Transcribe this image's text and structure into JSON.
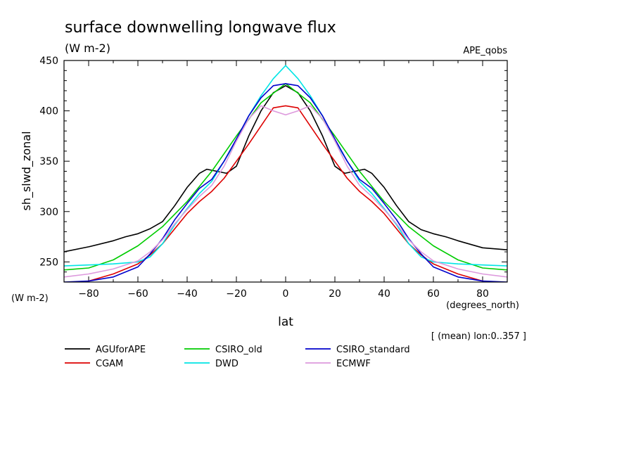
{
  "chart_data": {
    "type": "line",
    "title": "surface downwelling longwave flux",
    "units": "(W m-2)",
    "experiment": "APE_qobs",
    "ylabel": "sh_slwd_zonal",
    "y_units": "(W m-2)",
    "xlabel": "lat",
    "x_units": "(degrees_north)",
    "subset_note": "[ (mean) lon:0..357 ]",
    "xlim": [
      -90,
      90
    ],
    "ylim": [
      230,
      450
    ],
    "x_ticks": [
      -80,
      -60,
      -40,
      -20,
      0,
      20,
      40,
      60,
      80
    ],
    "x_tick_labels": [
      "−80",
      "−60",
      "−40",
      "−20",
      "0",
      "20",
      "40",
      "60",
      "80"
    ],
    "y_ticks": [
      250,
      300,
      350,
      400,
      450
    ],
    "y_tick_labels": [
      "250",
      "300",
      "350",
      "400",
      "450"
    ],
    "legend_position": "bottom",
    "series": [
      {
        "name": "AGUforAPE",
        "color": "#000000",
        "x": [
          -90,
          -80,
          -70,
          -65,
          -60,
          -55,
          -50,
          -45,
          -40,
          -35,
          -32,
          -28,
          -24,
          -20,
          -15,
          -10,
          -5,
          0,
          5,
          10,
          15,
          20,
          24,
          28,
          32,
          35,
          40,
          45,
          50,
          55,
          60,
          65,
          70,
          80,
          90
        ],
        "y": [
          260,
          265,
          271,
          275,
          278,
          283,
          290,
          306,
          324,
          338,
          342,
          340,
          338,
          345,
          375,
          400,
          418,
          425,
          418,
          400,
          375,
          345,
          338,
          340,
          342,
          338,
          324,
          306,
          290,
          282,
          278,
          275,
          271,
          264,
          262
        ]
      },
      {
        "name": "CGAM",
        "color": "#dd0000",
        "x": [
          -90,
          -80,
          -70,
          -60,
          -55,
          -50,
          -45,
          -40,
          -35,
          -30,
          -25,
          -20,
          -15,
          -10,
          -5,
          0,
          5,
          10,
          15,
          20,
          25,
          30,
          35,
          40,
          45,
          50,
          55,
          60,
          70,
          80,
          90
        ],
        "y": [
          228,
          231,
          238,
          248,
          257,
          268,
          283,
          298,
          310,
          320,
          333,
          350,
          367,
          385,
          403,
          405,
          403,
          385,
          367,
          350,
          333,
          320,
          310,
          298,
          283,
          268,
          257,
          248,
          238,
          231,
          228
        ]
      },
      {
        "name": "CSIRO_old",
        "color": "#00cc00",
        "x": [
          -90,
          -80,
          -70,
          -60,
          -50,
          -40,
          -30,
          -20,
          -10,
          0,
          10,
          20,
          30,
          40,
          50,
          60,
          70,
          80,
          90
        ],
        "y": [
          242,
          244,
          252,
          266,
          285,
          310,
          340,
          375,
          408,
          427,
          408,
          375,
          340,
          310,
          285,
          266,
          252,
          244,
          242
        ]
      },
      {
        "name": "DWD",
        "color": "#00e5e5",
        "x": [
          -90,
          -80,
          -70,
          -60,
          -55,
          -50,
          -45,
          -40,
          -35,
          -30,
          -25,
          -20,
          -15,
          -10,
          -5,
          0,
          5,
          10,
          15,
          20,
          25,
          30,
          35,
          40,
          45,
          50,
          55,
          60,
          70,
          80,
          90
        ],
        "y": [
          246,
          247,
          248,
          250,
          255,
          268,
          287,
          303,
          318,
          330,
          350,
          370,
          395,
          415,
          432,
          445,
          432,
          415,
          395,
          370,
          350,
          330,
          318,
          303,
          287,
          268,
          255,
          250,
          248,
          247,
          246
        ]
      },
      {
        "name": "CSIRO_standard",
        "color": "#0000cc",
        "x": [
          -90,
          -80,
          -70,
          -60,
          -55,
          -50,
          -45,
          -40,
          -35,
          -30,
          -25,
          -20,
          -15,
          -10,
          -5,
          0,
          5,
          10,
          15,
          20,
          25,
          30,
          35,
          40,
          45,
          50,
          55,
          60,
          70,
          80,
          90
        ],
        "y": [
          230,
          231,
          235,
          245,
          258,
          273,
          292,
          308,
          323,
          332,
          350,
          372,
          395,
          413,
          425,
          427,
          425,
          413,
          395,
          372,
          350,
          332,
          323,
          308,
          292,
          273,
          258,
          245,
          235,
          231,
          230
        ]
      },
      {
        "name": "ECMWF",
        "color": "#dd99dd",
        "x": [
          -90,
          -80,
          -70,
          -60,
          -55,
          -50,
          -45,
          -40,
          -35,
          -30,
          -25,
          -20,
          -15,
          -10,
          -5,
          0,
          5,
          10,
          15,
          20,
          25,
          30,
          35,
          40,
          45,
          50,
          55,
          60,
          70,
          80,
          90
        ],
        "y": [
          235,
          238,
          243,
          251,
          260,
          272,
          288,
          302,
          315,
          326,
          345,
          370,
          392,
          405,
          400,
          396,
          400,
          405,
          392,
          370,
          345,
          326,
          315,
          302,
          288,
          272,
          260,
          251,
          243,
          238,
          235
        ]
      }
    ]
  }
}
